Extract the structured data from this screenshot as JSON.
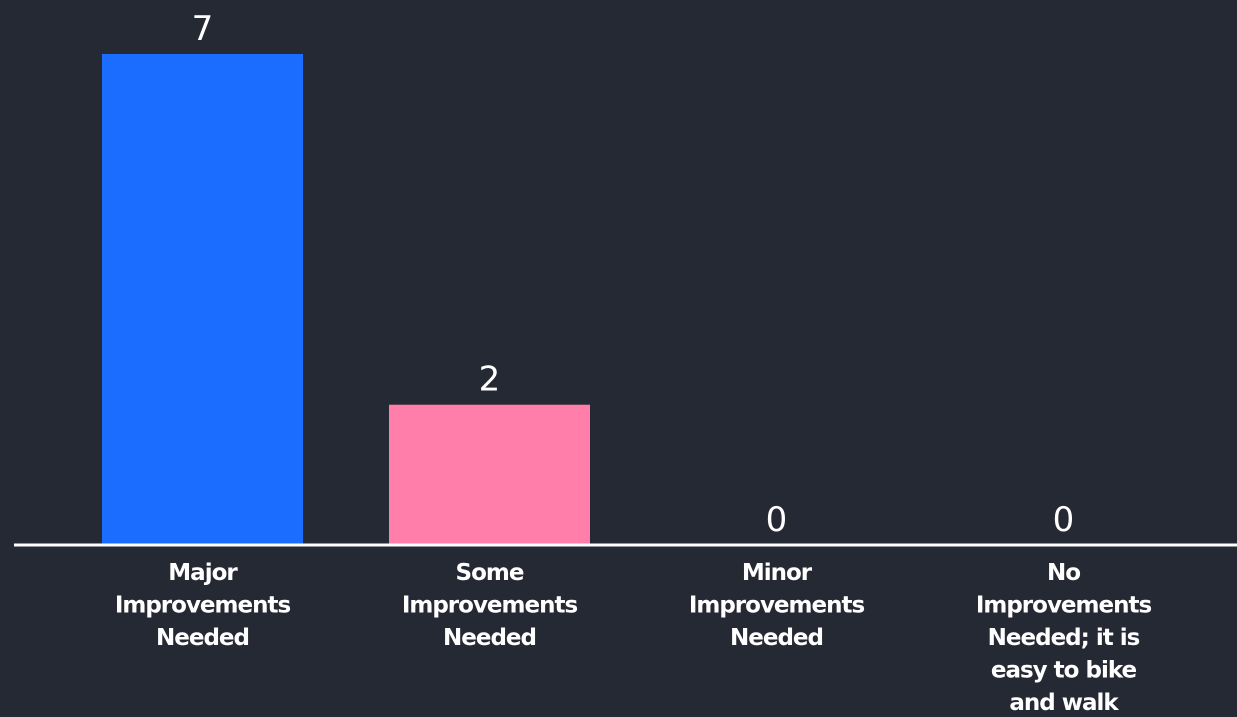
{
  "chart_data": {
    "type": "bar",
    "categories": [
      "Major Improvements Needed",
      "Some Improvements Needed",
      "Minor Improvements Needed",
      "No Improvements Needed; it is easy to bike and walk"
    ],
    "category_lines": [
      [
        "Major",
        "Improvements",
        "Needed"
      ],
      [
        "Some",
        "Improvements",
        "Needed"
      ],
      [
        "Minor",
        "Improvements",
        "Needed"
      ],
      [
        "No",
        "Improvements",
        "Needed; it is",
        "easy to bike",
        "and walk"
      ]
    ],
    "values": [
      7,
      2,
      0,
      0
    ],
    "value_labels": [
      "7",
      "2",
      "0",
      "0"
    ],
    "colors": [
      "#1a6dff",
      "#ff7eaa",
      "#ff7eaa",
      "#ff7eaa"
    ],
    "axis_color": "#ffffff",
    "background": "#252933",
    "title": "",
    "xlabel": "",
    "ylabel": "",
    "ylim": [
      0,
      7
    ],
    "grid": false
  }
}
